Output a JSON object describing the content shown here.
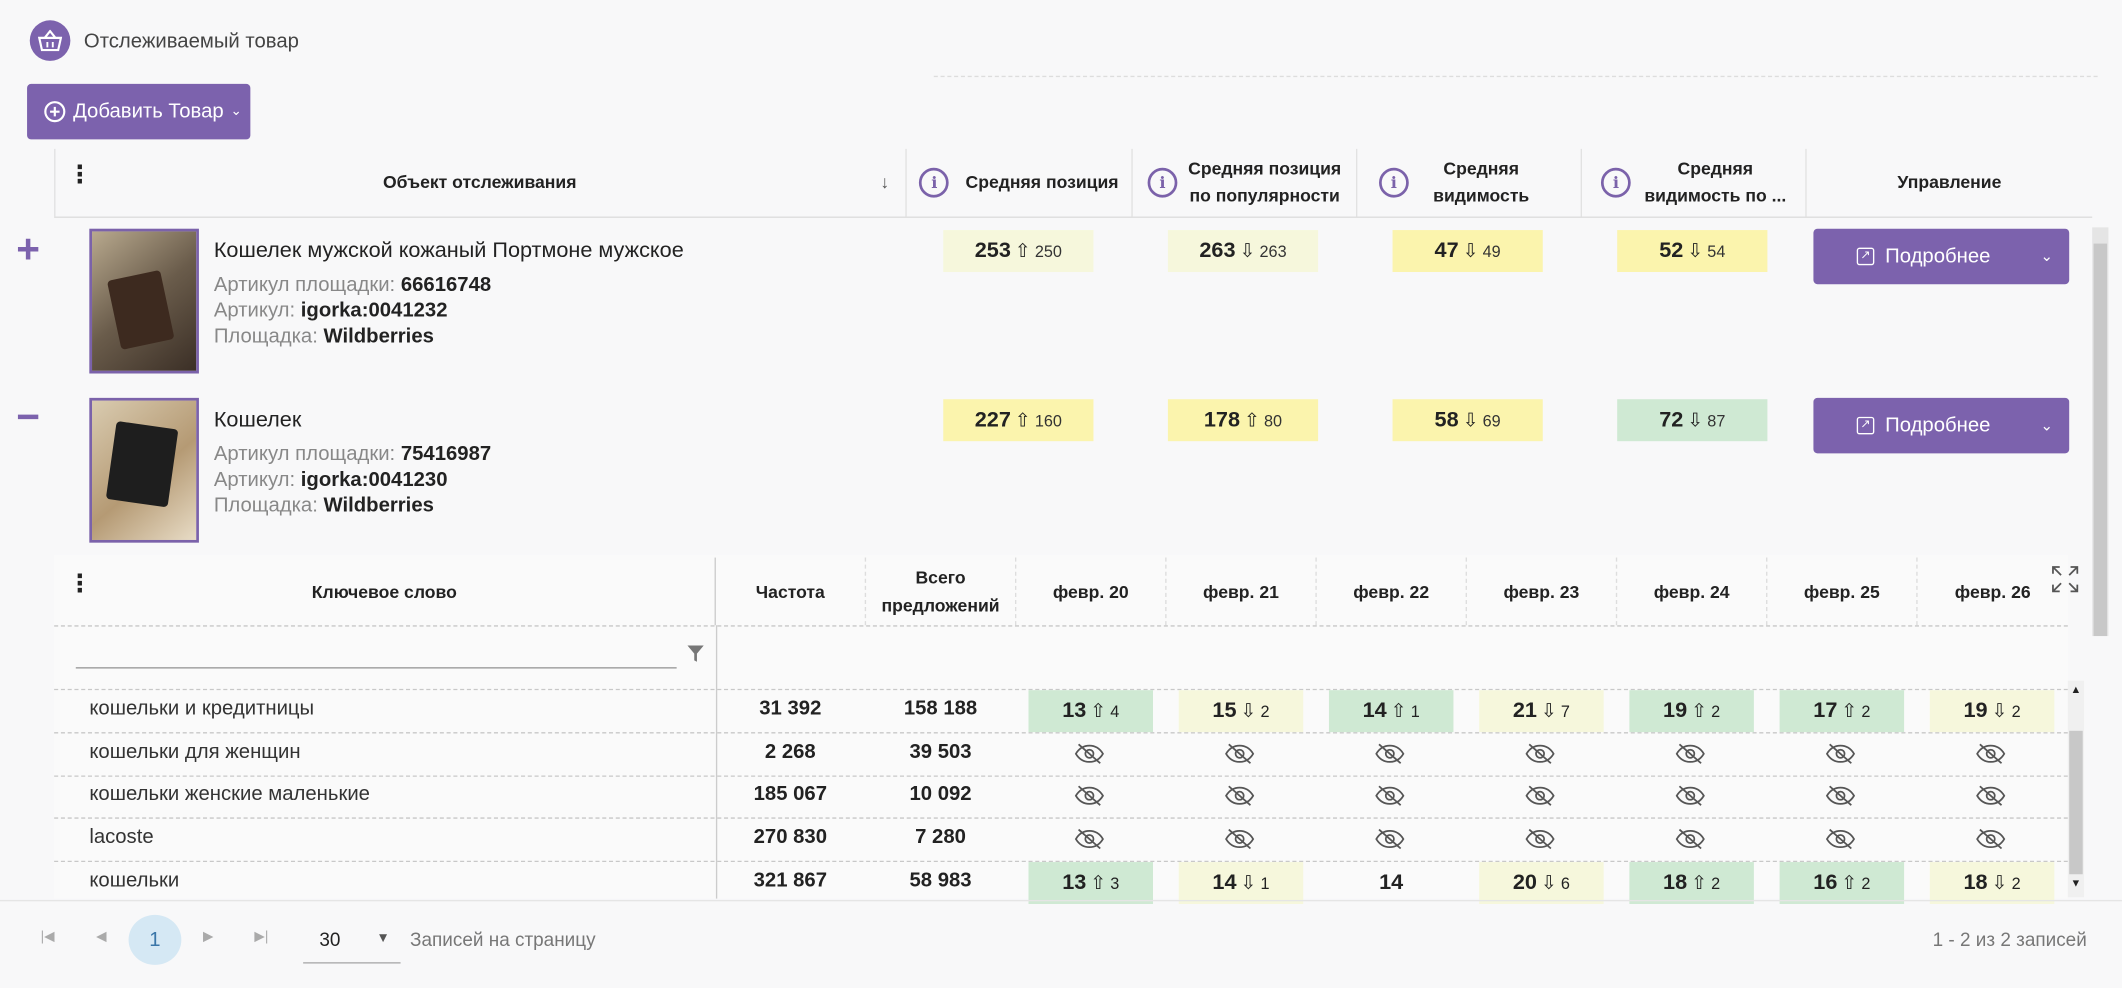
{
  "header": {
    "title": "Отслеживаемый товар",
    "add_button": "Добавить Товар"
  },
  "columns": {
    "object": "Объект отслеживания",
    "avg_pos": "Средняя позиция",
    "avg_pos_pop_1": "Средняя позиция",
    "avg_pos_pop_2": "по популярности",
    "vis_1": "Средняя",
    "vis_2": "видимость",
    "vis_pop_1": "Средняя",
    "vis_pop_2": "видимость по ...",
    "manage": "Управление"
  },
  "products": [
    {
      "expand": "+",
      "name": "Кошелек мужской кожаный Портмоне мужское",
      "sku_label": "Артикул площадки:",
      "sku": "66616748",
      "art_label": "Артикул:",
      "art": "igorka:0041232",
      "mp_label": "Площадка:",
      "mp": "Wildberries",
      "metrics": [
        {
          "v": "253",
          "d": "250",
          "dir": "up"
        },
        {
          "v": "263",
          "d": "263",
          "dir": "down"
        },
        {
          "v": "47",
          "d": "49",
          "dir": "down"
        },
        {
          "v": "52",
          "d": "54",
          "dir": "down"
        }
      ],
      "details": "Подробнее"
    },
    {
      "expand": "−",
      "name": "Кошелек",
      "sku_label": "Артикул площадки:",
      "sku": "75416987",
      "art_label": "Артикул:",
      "art": "igorka:0041230",
      "mp_label": "Площадка:",
      "mp": "Wildberries",
      "metrics": [
        {
          "v": "227",
          "d": "160",
          "dir": "up"
        },
        {
          "v": "178",
          "d": "80",
          "dir": "up"
        },
        {
          "v": "58",
          "d": "69",
          "dir": "down"
        },
        {
          "v": "72",
          "d": "87",
          "dir": "down"
        }
      ],
      "details": "Подробнее"
    }
  ],
  "detail": {
    "kw_header": "Ключевое слово",
    "freq_header": "Частота",
    "offers_1": "Всего",
    "offers_2": "предложений",
    "dates": [
      "февр. 20",
      "февр. 21",
      "февр. 22",
      "февр. 23",
      "февр. 24",
      "февр. 25",
      "февр. 26"
    ],
    "rows": [
      {
        "kw": "кошельки и кредитницы",
        "freq": "31 392",
        "offers": "158 188",
        "cells": [
          [
            "13",
            "4",
            "up",
            "g"
          ],
          [
            "15",
            "2",
            "down",
            "y"
          ],
          [
            "14",
            "1",
            "up",
            "g"
          ],
          [
            "21",
            "7",
            "down",
            "y"
          ],
          [
            "19",
            "2",
            "up",
            "g"
          ],
          [
            "17",
            "2",
            "up",
            "g"
          ],
          [
            "19",
            "2",
            "down",
            "y"
          ]
        ]
      },
      {
        "kw": "кошельки для женщин",
        "freq": "2 268",
        "offers": "39 503",
        "cells": "hidden"
      },
      {
        "kw": "кошельки женские маленькие",
        "freq": "185 067",
        "offers": "10 092",
        "cells": "hidden"
      },
      {
        "kw": "lacoste",
        "freq": "270 830",
        "offers": "7 280",
        "cells": "hidden"
      },
      {
        "kw": "кошельки",
        "freq": "321 867",
        "offers": "58 983",
        "cells": [
          [
            "13",
            "3",
            "up",
            "g"
          ],
          [
            "14",
            "1",
            "down",
            "y"
          ],
          [
            "14",
            "",
            "",
            ""
          ],
          [
            "20",
            "6",
            "down",
            "y"
          ],
          [
            "18",
            "2",
            "up",
            "g"
          ],
          [
            "16",
            "2",
            "up",
            "g"
          ],
          [
            "18",
            "2",
            "down",
            "y"
          ]
        ]
      }
    ]
  },
  "pager": {
    "page": "1",
    "page_size": "30",
    "per_page_label": "Записей на страницу",
    "summary": "1 - 2 из 2 записей"
  }
}
